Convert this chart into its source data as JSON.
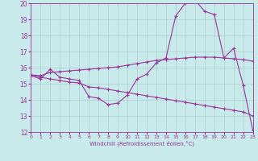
{
  "background_color": "#c8eaea",
  "line_color": "#993399",
  "grid_color": "#aacccc",
  "xlabel": "Windchill (Refroidissement éolien,°C)",
  "xlim": [
    0,
    23
  ],
  "ylim": [
    12,
    20
  ],
  "yticks": [
    12,
    13,
    14,
    15,
    16,
    17,
    18,
    19,
    20
  ],
  "xticks": [
    0,
    1,
    2,
    3,
    4,
    5,
    6,
    7,
    8,
    9,
    10,
    11,
    12,
    13,
    14,
    15,
    16,
    17,
    18,
    19,
    20,
    21,
    22,
    23
  ],
  "curve1_x": [
    0,
    1,
    2,
    3,
    4,
    5,
    6,
    7,
    8,
    9,
    10,
    11,
    12,
    13,
    14,
    15,
    16,
    17,
    18,
    19,
    20,
    21,
    22,
    23
  ],
  "curve1_y": [
    15.5,
    15.3,
    15.9,
    15.4,
    15.3,
    15.2,
    14.2,
    14.1,
    13.7,
    13.8,
    14.3,
    15.3,
    15.6,
    16.3,
    16.6,
    19.2,
    20.0,
    20.2,
    19.5,
    19.3,
    16.6,
    17.2,
    14.9,
    12.1
  ],
  "curve2_x": [
    0,
    1,
    2,
    3,
    4,
    5,
    6,
    7,
    8,
    9,
    10,
    11,
    12,
    13,
    14,
    15,
    16,
    17,
    18,
    19,
    20,
    21,
    22,
    23
  ],
  "curve2_y": [
    15.55,
    15.5,
    15.7,
    15.75,
    15.8,
    15.85,
    15.9,
    15.95,
    16.0,
    16.05,
    16.15,
    16.25,
    16.35,
    16.45,
    16.5,
    16.55,
    16.6,
    16.65,
    16.65,
    16.65,
    16.6,
    16.55,
    16.5,
    16.4
  ],
  "curve3_x": [
    0,
    1,
    2,
    3,
    4,
    5,
    6,
    7,
    8,
    9,
    10,
    11,
    12,
    13,
    14,
    15,
    16,
    17,
    18,
    19,
    20,
    21,
    22,
    23
  ],
  "curve3_y": [
    15.55,
    15.4,
    15.3,
    15.2,
    15.1,
    15.05,
    14.8,
    14.75,
    14.65,
    14.55,
    14.45,
    14.35,
    14.25,
    14.15,
    14.05,
    13.95,
    13.85,
    13.75,
    13.65,
    13.55,
    13.45,
    13.35,
    13.25,
    13.0
  ]
}
